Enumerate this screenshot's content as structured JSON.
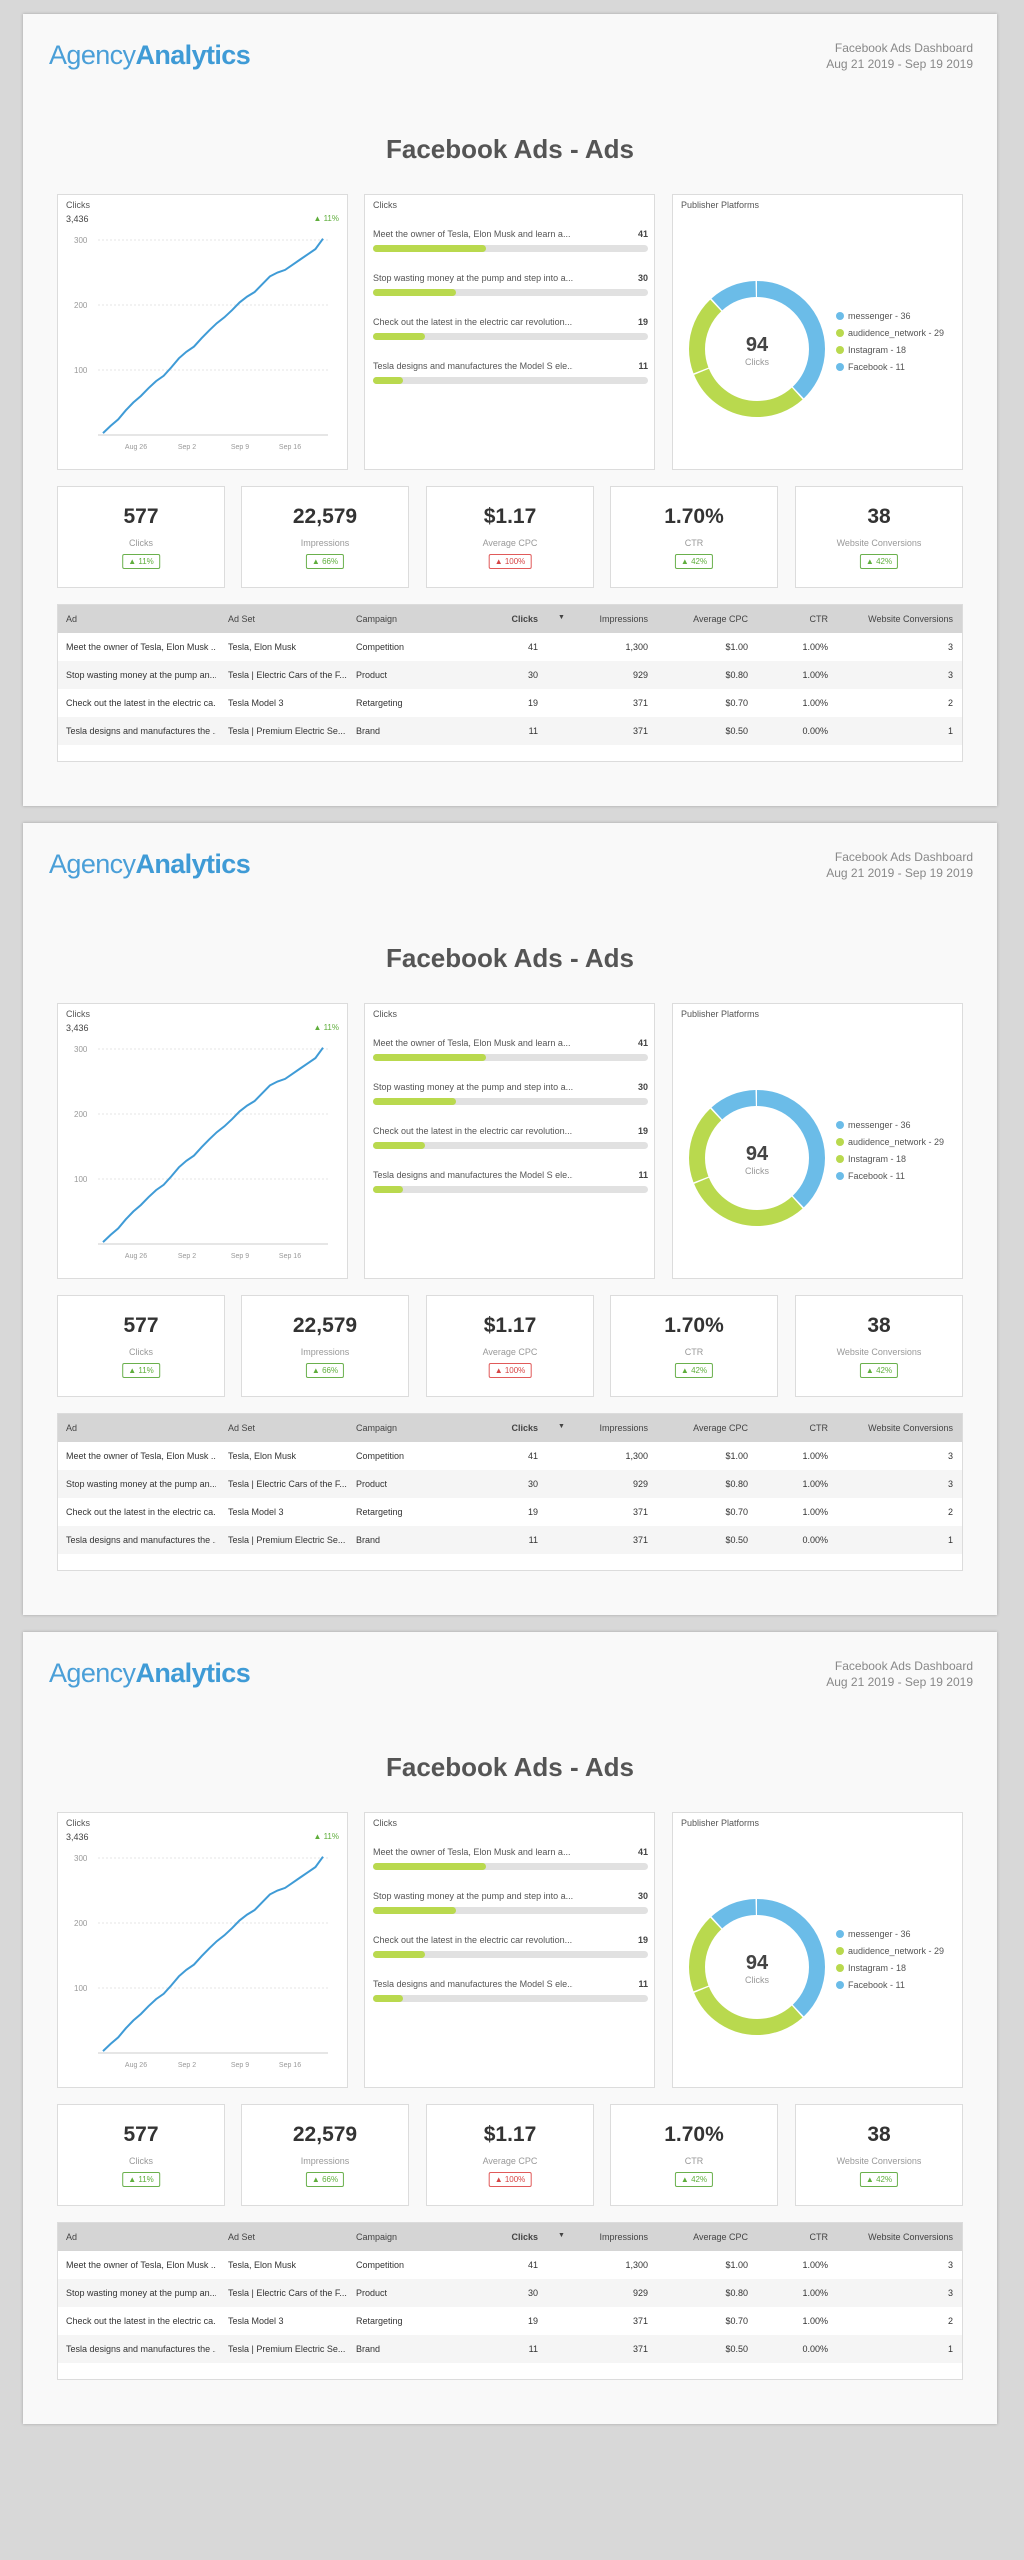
{
  "logo": {
    "part1": "Agency",
    "part2": "Analytics"
  },
  "report": {
    "name": "Facebook Ads Dashboard",
    "dates": "Aug 21 2019 - Sep 19 2019"
  },
  "title": "Facebook Ads - Ads",
  "line_widget": {
    "label": "Clicks",
    "total": "3,436",
    "delta": "▲ 11%",
    "chart_data": {
      "type": "line",
      "y_ticks": [
        "300",
        "200",
        "100"
      ],
      "x_ticks": [
        "Aug 26",
        "Sep 2",
        "Sep 9",
        "Sep 16"
      ],
      "series": [
        {
          "values": [
            3,
            14,
            24,
            38,
            50,
            60,
            72,
            83,
            91,
            104,
            118,
            128,
            136,
            149,
            161,
            172,
            181,
            192,
            204,
            213,
            220,
            232,
            244,
            250,
            254,
            262,
            270,
            278,
            286,
            302
          ]
        }
      ]
    }
  },
  "bars_widget": {
    "label": "Clicks",
    "max": 100,
    "items": [
      {
        "text": "Meet the owner of Tesla, Elon Musk and learn a...",
        "value": 41
      },
      {
        "text": "Stop wasting money at the pump and step into a...",
        "value": 30
      },
      {
        "text": "Check out the latest in the electric car revolution...",
        "value": 19
      },
      {
        "text": "Tesla designs and manufactures the Model S ele...",
        "value": 11
      }
    ]
  },
  "donut_widget": {
    "label": "Publisher Platforms",
    "center_value": "94",
    "center_label": "Clicks",
    "chart_data": {
      "type": "pie",
      "slices": [
        {
          "label": "messenger - 36",
          "value": 36,
          "color": "#6bbce8"
        },
        {
          "label": "audidence_network - 29",
          "value": 29,
          "color": "#b9d94e"
        },
        {
          "label": "Instagram - 18",
          "value": 18,
          "color": "#b9d94e"
        },
        {
          "label": "Facebook - 11",
          "value": 11,
          "color": "#6bbce8"
        }
      ]
    }
  },
  "stats": [
    {
      "value": "577",
      "label": "Clicks",
      "badge": "▲ 11%",
      "negative": false
    },
    {
      "value": "22,579",
      "label": "Impressions",
      "badge": "▲ 66%",
      "negative": false
    },
    {
      "value": "$1.17",
      "label": "Average CPC",
      "badge": "▲ 100%",
      "negative": true
    },
    {
      "value": "1.70%",
      "label": "CTR",
      "badge": "▲ 42%",
      "negative": false
    },
    {
      "value": "38",
      "label": "Website Conversions",
      "badge": "▲ 42%",
      "negative": false
    }
  ],
  "table": {
    "headers": [
      "Ad",
      "Ad Set",
      "Campaign",
      "Clicks",
      "Impressions",
      "Average CPC",
      "CTR",
      "Website Conversions"
    ],
    "sort_icon": "▼",
    "rows": [
      [
        "Meet the owner of Tesla, Elon Musk ...",
        "Tesla, Elon Musk",
        "Competition",
        "41",
        "1,300",
        "$1.00",
        "1.00%",
        "3"
      ],
      [
        "Stop wasting money at the pump an...",
        "Tesla | Electric Cars of the F...",
        "Product",
        "30",
        "929",
        "$0.80",
        "1.00%",
        "3"
      ],
      [
        "Check out the latest in the electric ca...",
        "Tesla Model 3",
        "Retargeting",
        "19",
        "371",
        "$0.70",
        "1.00%",
        "2"
      ],
      [
        "Tesla designs and manufactures the ...",
        "Tesla | Premium Electric Se...",
        "Brand",
        "11",
        "371",
        "$0.50",
        "0.00%",
        "1"
      ]
    ]
  },
  "colors": {
    "accent": "#3f9bd6",
    "bar": "#b9d94e",
    "donut_blue": "#6bbce8",
    "up": "#5fae3c",
    "down": "#d64545"
  }
}
